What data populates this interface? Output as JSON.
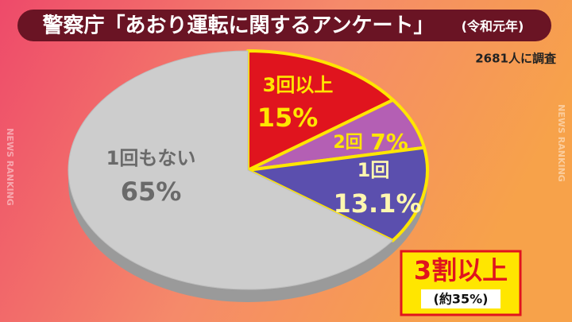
{
  "chart_data": {
    "type": "pie",
    "title": "警察庁「あおり運転に関するアンケート」",
    "subtitle": "(令和元年)",
    "note": "2681人に調査",
    "categories": [
      "3回以上",
      "2回",
      "1回",
      "1回もない"
    ],
    "values": [
      15,
      7,
      13.1,
      65
    ],
    "value_labels": [
      "15%",
      "7%",
      "13.1%",
      "65%"
    ],
    "colors": [
      "#e0141e",
      "#b45fb4",
      "#5b4fae",
      "#cdcdcd"
    ]
  },
  "callout": {
    "title": "3割以上",
    "subtitle": "(約35%)"
  },
  "watermark": "NEWS RANKING"
}
